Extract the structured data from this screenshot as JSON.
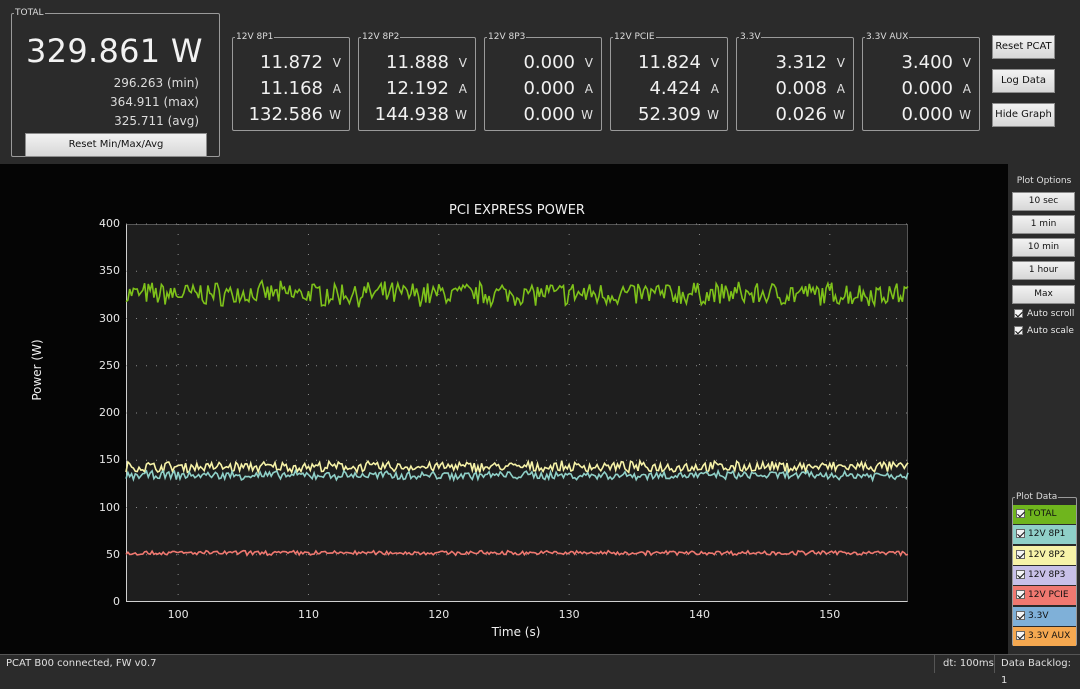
{
  "total": {
    "legend": "TOTAL",
    "power": "329.861 W",
    "min": "296.263 (min)",
    "max": "364.911 (max)",
    "avg": "325.711 (avg)",
    "reset_label": "Reset Min/Max/Avg"
  },
  "channels": [
    {
      "name": "12V 8P1",
      "v": "11.872",
      "a": "11.168",
      "w": "132.586"
    },
    {
      "name": "12V 8P2",
      "v": "11.888",
      "a": "12.192",
      "w": "144.938"
    },
    {
      "name": "12V 8P3",
      "v": "0.000",
      "a": "0.000",
      "w": "0.000"
    },
    {
      "name": "12V PCIE",
      "v": "11.824",
      "a": "4.424",
      "w": "52.309"
    },
    {
      "name": "3.3V",
      "v": "3.312",
      "a": "0.008",
      "w": "0.026"
    },
    {
      "name": "3.3V AUX",
      "v": "3.400",
      "a": "0.000",
      "w": "0.000"
    }
  ],
  "units": {
    "v": "V",
    "a": "A",
    "w": "W"
  },
  "buttons": {
    "reset_pcat": "Reset PCAT",
    "log_data": "Log Data",
    "hide_graph": "Hide Graph"
  },
  "plot_options": {
    "title": "Plot Options",
    "ranges": [
      "10 sec",
      "1 min",
      "10 min",
      "1 hour",
      "Max"
    ],
    "auto_scroll": "Auto scroll",
    "auto_scale": "Auto scale"
  },
  "plot_data": {
    "title": "Plot Data",
    "items": [
      {
        "label": "TOTAL",
        "color": "#6fb51d"
      },
      {
        "label": "12V 8P1",
        "color": "#8fd0c8"
      },
      {
        "label": "12V 8P2",
        "color": "#f7f3a8"
      },
      {
        "label": "12V 8P3",
        "color": "#c8c0e8"
      },
      {
        "label": "12V PCIE",
        "color": "#f07870"
      },
      {
        "label": "3.3V",
        "color": "#7fb0d8"
      },
      {
        "label": "3.3V AUX",
        "color": "#f5a850"
      }
    ]
  },
  "chart_data": {
    "type": "line",
    "title": "PCI EXPRESS POWER",
    "xlabel": "Time (s)",
    "ylabel": "Power (W)",
    "xlim": [
      96,
      156
    ],
    "ylim": [
      0,
      400
    ],
    "xticks": [
      100,
      110,
      120,
      130,
      140,
      150
    ],
    "yticks": [
      0,
      50,
      100,
      150,
      200,
      250,
      300,
      350,
      400
    ],
    "grid": true,
    "series": [
      {
        "name": "TOTAL",
        "color": "#7ec21a",
        "mean": 326,
        "noise": 11
      },
      {
        "name": "12V 8P2",
        "color": "#f7f3a8",
        "mean": 143,
        "noise": 5
      },
      {
        "name": "12V 8P1",
        "color": "#8fd0c8",
        "mean": 134,
        "noise": 4
      },
      {
        "name": "12V PCIE",
        "color": "#f07870",
        "mean": 52,
        "noise": 2
      }
    ]
  },
  "status": {
    "left": "PCAT B00 connected, FW v0.7",
    "dt": "dt: 100ms",
    "backlog": "Data Backlog: 1"
  }
}
